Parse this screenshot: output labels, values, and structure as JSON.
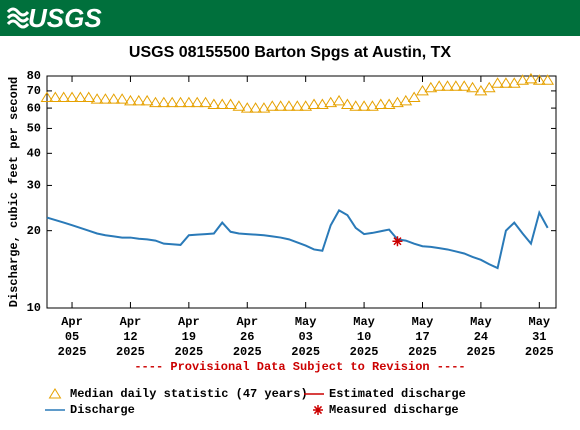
{
  "logo": "USGS",
  "chart_data": {
    "type": "line",
    "title": "USGS 08155500 Barton Spgs at Austin, TX",
    "ylabel": "Discharge, cubic feet per second",
    "note": "---- Provisional Data Subject to Revision ----",
    "log_y": true,
    "ylim": [
      10,
      80
    ],
    "yticks": [
      10,
      20,
      30,
      40,
      50,
      60,
      70,
      80
    ],
    "xlim": [
      "2025-04-02",
      "2025-06-02"
    ],
    "xticks": [
      {
        "value": "2025-04-05",
        "label": [
          "Apr",
          "05",
          "2025"
        ]
      },
      {
        "value": "2025-04-12",
        "label": [
          "Apr",
          "12",
          "2025"
        ]
      },
      {
        "value": "2025-04-19",
        "label": [
          "Apr",
          "19",
          "2025"
        ]
      },
      {
        "value": "2025-04-26",
        "label": [
          "Apr",
          "26",
          "2025"
        ]
      },
      {
        "value": "2025-05-03",
        "label": [
          "May",
          "03",
          "2025"
        ]
      },
      {
        "value": "2025-05-10",
        "label": [
          "May",
          "10",
          "2025"
        ]
      },
      {
        "value": "2025-05-17",
        "label": [
          "May",
          "17",
          "2025"
        ]
      },
      {
        "value": "2025-05-24",
        "label": [
          "May",
          "24",
          "2025"
        ]
      },
      {
        "value": "2025-05-31",
        "label": [
          "May",
          "31",
          "2025"
        ]
      }
    ],
    "x": [
      "2025-04-02",
      "2025-04-03",
      "2025-04-04",
      "2025-04-05",
      "2025-04-06",
      "2025-04-07",
      "2025-04-08",
      "2025-04-09",
      "2025-04-10",
      "2025-04-11",
      "2025-04-12",
      "2025-04-13",
      "2025-04-14",
      "2025-04-15",
      "2025-04-16",
      "2025-04-17",
      "2025-04-18",
      "2025-04-19",
      "2025-04-20",
      "2025-04-21",
      "2025-04-22",
      "2025-04-23",
      "2025-04-24",
      "2025-04-25",
      "2025-04-26",
      "2025-04-27",
      "2025-04-28",
      "2025-04-29",
      "2025-04-30",
      "2025-05-01",
      "2025-05-02",
      "2025-05-03",
      "2025-05-04",
      "2025-05-05",
      "2025-05-06",
      "2025-05-07",
      "2025-05-08",
      "2025-05-09",
      "2025-05-10",
      "2025-05-11",
      "2025-05-12",
      "2025-05-13",
      "2025-05-14",
      "2025-05-15",
      "2025-05-16",
      "2025-05-17",
      "2025-05-18",
      "2025-05-19",
      "2025-05-20",
      "2025-05-21",
      "2025-05-22",
      "2025-05-23",
      "2025-05-24",
      "2025-05-25",
      "2025-05-26",
      "2025-05-27",
      "2025-05-28",
      "2025-05-29",
      "2025-05-30",
      "2025-05-31",
      "2025-06-01"
    ],
    "series": [
      {
        "name": "Median daily statistic (47 years)",
        "color": "#e6a100",
        "marker": "triangle",
        "values": [
          66,
          66,
          66,
          66,
          66,
          66,
          65,
          65,
          65,
          65,
          64,
          64,
          64,
          63,
          63,
          63,
          63,
          63,
          63,
          63,
          62,
          62,
          62,
          61,
          60,
          60,
          60,
          61,
          61,
          61,
          61,
          61,
          62,
          62,
          63,
          64,
          62,
          61,
          61,
          61,
          62,
          62,
          63,
          64,
          66,
          70,
          72,
          73,
          73,
          73,
          73,
          72,
          70,
          72,
          75,
          75,
          75,
          77,
          78,
          77,
          77
        ]
      },
      {
        "name": "Estimated discharge",
        "color": "#cc0000",
        "marker": "line",
        "values": [
          null,
          null,
          null,
          null,
          null,
          null,
          null,
          null,
          null,
          null,
          null,
          null,
          null,
          null,
          null,
          null,
          null,
          null,
          null,
          null,
          null,
          null,
          null,
          null,
          null,
          null,
          null,
          null,
          null,
          null,
          null,
          null,
          null,
          null,
          null,
          null,
          null,
          null,
          null,
          19.6,
          19.9,
          20.2,
          null,
          null,
          null,
          null,
          null,
          null,
          null,
          null,
          16.3,
          15.8,
          null,
          null,
          null,
          null,
          null,
          null,
          null,
          null,
          null
        ]
      },
      {
        "name": "Discharge",
        "color": "#2a7ab8",
        "marker": "line",
        "values": [
          22.5,
          22,
          21.5,
          21,
          20.5,
          20,
          19.5,
          19.2,
          19,
          18.8,
          18.8,
          18.6,
          18.5,
          18.3,
          17.8,
          17.7,
          17.6,
          19.2,
          19.3,
          19.4,
          19.5,
          21.5,
          19.8,
          19.5,
          19.4,
          19.3,
          19.2,
          19,
          18.8,
          18.5,
          18,
          17.5,
          16.9,
          16.7,
          21,
          24,
          23,
          20.5,
          19.4,
          19.6,
          19.9,
          20.2,
          18.5,
          18.3,
          17.8,
          17.4,
          17.3,
          17.1,
          16.9,
          16.6,
          16.3,
          15.8,
          15.4,
          14.8,
          14.3,
          20,
          21.5,
          19.5,
          17.8,
          23.5,
          20.5
        ]
      },
      {
        "name": "Measured discharge",
        "color": "#cc0000",
        "marker": "asterisk",
        "x": [
          "2025-05-14"
        ],
        "values": [
          18.2
        ]
      }
    ]
  }
}
